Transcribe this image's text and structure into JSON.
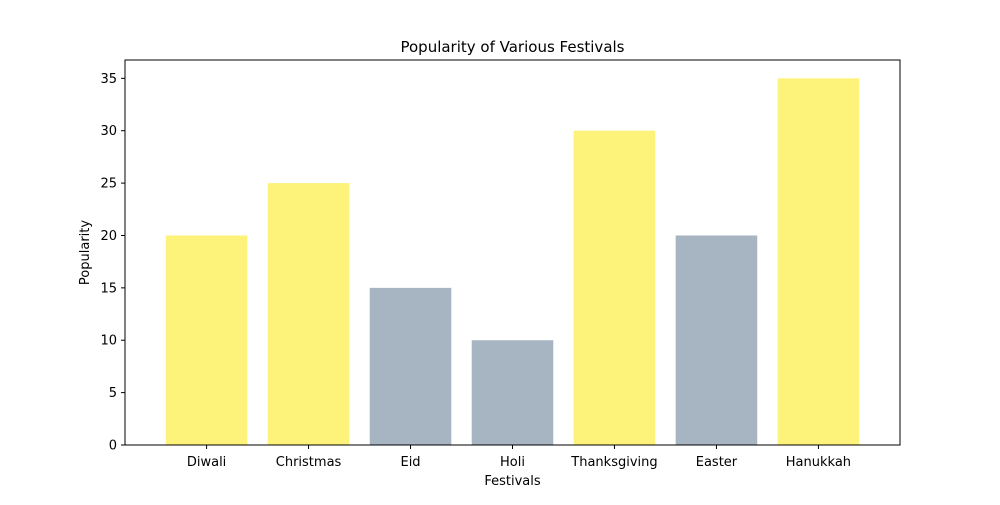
{
  "chart_data": {
    "type": "bar",
    "title": "Popularity of Various Festivals",
    "xlabel": "Festivals",
    "ylabel": "Popularity",
    "categories": [
      "Diwali",
      "Christmas",
      "Eid",
      "Holi",
      "Thanksgiving",
      "Easter",
      "Hanukkah"
    ],
    "values": [
      20,
      25,
      15,
      10,
      30,
      20,
      35
    ],
    "bar_colors": [
      "#fdf27a",
      "#fdf27a",
      "#a7b4c2",
      "#a7b4c2",
      "#fdf27a",
      "#a7b4c2",
      "#fdf27a"
    ],
    "ylim": [
      0,
      36.75
    ],
    "yticks": [
      0,
      5,
      10,
      15,
      20,
      25,
      30,
      35
    ],
    "grid": false,
    "legend": "none"
  }
}
